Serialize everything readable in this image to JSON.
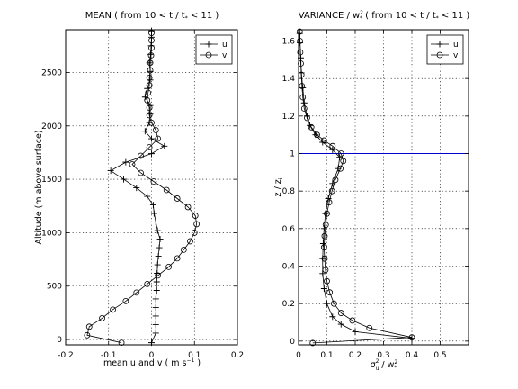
{
  "chart_data": [
    {
      "type": "line",
      "title": "MEAN ( from 10 < t / t_* < 11 )",
      "xlabel": "mean u and v ( m s^-1 )",
      "ylabel": "Altitude (m above surface)",
      "xlim": [
        -0.2,
        0.2
      ],
      "ylim": [
        -50,
        2900
      ],
      "xticks": [
        -0.2,
        -0.1,
        0,
        0.1,
        0.2
      ],
      "yticks": [
        0,
        500,
        1000,
        1500,
        2000,
        2500
      ],
      "xtick_labels": [
        "-0.2",
        "-0.1",
        "0",
        "0.1",
        "0.2"
      ],
      "ytick_labels": [
        "0",
        "500",
        "1000",
        "1500",
        "2000",
        "2500"
      ],
      "grid": true,
      "legend": {
        "placement": "top-right",
        "entries": [
          "u",
          "v"
        ]
      },
      "series": [
        {
          "name": "u",
          "marker": "plus",
          "color": "#000000",
          "points": [
            [
              0.0,
              -30
            ],
            [
              0.01,
              60
            ],
            [
              0.01,
              140
            ],
            [
              0.01,
              220
            ],
            [
              0.01,
              300
            ],
            [
              0.01,
              380
            ],
            [
              0.012,
              460
            ],
            [
              0.012,
              540
            ],
            [
              0.013,
              620
            ],
            [
              0.014,
              700
            ],
            [
              0.016,
              780
            ],
            [
              0.018,
              860
            ],
            [
              0.02,
              940
            ],
            [
              0.014,
              1020
            ],
            [
              0.01,
              1100
            ],
            [
              0.006,
              1180
            ],
            [
              0.004,
              1260
            ],
            [
              -0.01,
              1340
            ],
            [
              -0.035,
              1420
            ],
            [
              -0.065,
              1500
            ],
            [
              -0.095,
              1580
            ],
            [
              -0.06,
              1660
            ],
            [
              0.0,
              1740
            ],
            [
              0.03,
              1810
            ],
            [
              0.0,
              1880
            ],
            [
              -0.015,
              1950
            ],
            [
              -0.005,
              2030
            ],
            [
              -0.003,
              2110
            ],
            [
              -0.003,
              2190
            ],
            [
              -0.015,
              2270
            ],
            [
              -0.01,
              2350
            ],
            [
              -0.003,
              2430
            ],
            [
              -0.003,
              2510
            ],
            [
              -0.005,
              2590
            ],
            [
              -0.002,
              2670
            ],
            [
              -0.001,
              2750
            ],
            [
              0.0,
              2830
            ],
            [
              0.0,
              2890
            ]
          ]
        },
        {
          "name": "v",
          "marker": "circle",
          "color": "#000000",
          "points": [
            [
              -0.07,
              -30
            ],
            [
              -0.15,
              40
            ],
            [
              -0.145,
              120
            ],
            [
              -0.115,
              200
            ],
            [
              -0.09,
              280
            ],
            [
              -0.06,
              360
            ],
            [
              -0.035,
              440
            ],
            [
              -0.01,
              520
            ],
            [
              0.015,
              600
            ],
            [
              0.04,
              680
            ],
            [
              0.06,
              760
            ],
            [
              0.075,
              840
            ],
            [
              0.09,
              920
            ],
            [
              0.1,
              1000
            ],
            [
              0.105,
              1080
            ],
            [
              0.102,
              1160
            ],
            [
              0.085,
              1240
            ],
            [
              0.06,
              1320
            ],
            [
              0.035,
              1400
            ],
            [
              0.005,
              1480
            ],
            [
              -0.025,
              1560
            ],
            [
              -0.045,
              1640
            ],
            [
              -0.025,
              1720
            ],
            [
              -0.005,
              1800
            ],
            [
              0.015,
              1880
            ],
            [
              0.01,
              1960
            ],
            [
              0.0,
              2030
            ],
            [
              -0.005,
              2100
            ],
            [
              -0.005,
              2170
            ],
            [
              -0.01,
              2240
            ],
            [
              -0.008,
              2310
            ],
            [
              -0.005,
              2380
            ],
            [
              -0.005,
              2450
            ],
            [
              -0.003,
              2520
            ],
            [
              -0.003,
              2590
            ],
            [
              -0.001,
              2660
            ],
            [
              0.0,
              2730
            ],
            [
              0.0,
              2800
            ],
            [
              0.0,
              2870
            ]
          ]
        }
      ]
    },
    {
      "type": "line",
      "title": "VARIANCE / w_*^2 ( from 10 < t / t_* < 11 )",
      "xlabel": "σ_u^2 / w_*^2",
      "ylabel": "z / z_i",
      "xlim": [
        0,
        0.6
      ],
      "ylim": [
        -0.02,
        1.66
      ],
      "xticks": [
        0,
        0.1,
        0.2,
        0.3,
        0.4,
        0.5
      ],
      "yticks": [
        0,
        0.2,
        0.4,
        0.6,
        0.8,
        1,
        1.2,
        1.4,
        1.6
      ],
      "xtick_labels": [
        "0",
        "0.1",
        "0.2",
        "0.3",
        "0.4",
        "0.5"
      ],
      "ytick_labels": [
        "0",
        "0.2",
        "0.4",
        "0.6",
        "0.8",
        "1",
        "1.2",
        "1.4",
        "1.6"
      ],
      "grid": true,
      "legend": {
        "placement": "top-right",
        "entries": [
          "u",
          "v"
        ]
      },
      "reference_line": {
        "y": 1,
        "color": "#0000cc"
      },
      "series": [
        {
          "name": "u",
          "marker": "plus",
          "color": "#000000",
          "points": [
            [
              0.4,
              0.015
            ],
            [
              0.2,
              0.05
            ],
            [
              0.15,
              0.09
            ],
            [
              0.12,
              0.13
            ],
            [
              0.1,
              0.2
            ],
            [
              0.09,
              0.28
            ],
            [
              0.085,
              0.36
            ],
            [
              0.085,
              0.44
            ],
            [
              0.087,
              0.52
            ],
            [
              0.09,
              0.6
            ],
            [
              0.095,
              0.68
            ],
            [
              0.105,
              0.76
            ],
            [
              0.12,
              0.84
            ],
            [
              0.14,
              0.92
            ],
            [
              0.145,
              0.98
            ],
            [
              0.12,
              1.02
            ],
            [
              0.085,
              1.06
            ],
            [
              0.06,
              1.1
            ],
            [
              0.04,
              1.15
            ],
            [
              0.03,
              1.2
            ],
            [
              0.02,
              1.27
            ],
            [
              0.015,
              1.35
            ],
            [
              0.01,
              1.43
            ],
            [
              0.008,
              1.51
            ],
            [
              0.005,
              1.59
            ],
            [
              0.004,
              1.64
            ]
          ]
        },
        {
          "name": "v",
          "marker": "circle",
          "color": "#000000",
          "points": [
            [
              0.05,
              -0.01
            ],
            [
              0.4,
              0.02
            ],
            [
              0.25,
              0.07
            ],
            [
              0.19,
              0.11
            ],
            [
              0.15,
              0.15
            ],
            [
              0.125,
              0.2
            ],
            [
              0.11,
              0.26
            ],
            [
              0.1,
              0.32
            ],
            [
              0.095,
              0.38
            ],
            [
              0.092,
              0.44
            ],
            [
              0.09,
              0.5
            ],
            [
              0.092,
              0.56
            ],
            [
              0.096,
              0.62
            ],
            [
              0.1,
              0.68
            ],
            [
              0.108,
              0.74
            ],
            [
              0.118,
              0.8
            ],
            [
              0.13,
              0.86
            ],
            [
              0.148,
              0.92
            ],
            [
              0.158,
              0.96
            ],
            [
              0.15,
              1.0
            ],
            [
              0.12,
              1.04
            ],
            [
              0.09,
              1.07
            ],
            [
              0.065,
              1.1
            ],
            [
              0.045,
              1.14
            ],
            [
              0.03,
              1.19
            ],
            [
              0.02,
              1.24
            ],
            [
              0.015,
              1.3
            ],
            [
              0.012,
              1.36
            ],
            [
              0.01,
              1.42
            ],
            [
              0.008,
              1.48
            ],
            [
              0.006,
              1.54
            ],
            [
              0.005,
              1.6
            ],
            [
              0.004,
              1.65
            ]
          ]
        }
      ]
    }
  ]
}
